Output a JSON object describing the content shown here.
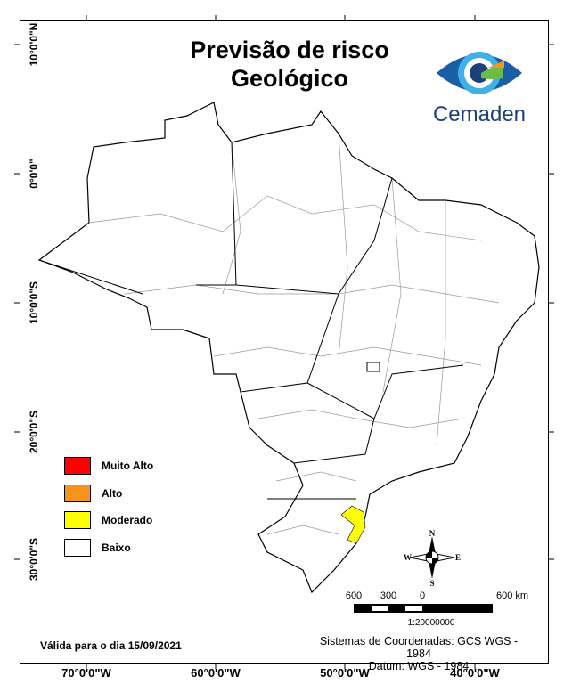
{
  "title": {
    "line1": "Previsão de risco",
    "line2": "Geológico"
  },
  "logo": {
    "text": "Cemaden",
    "icon": "cemaden-eye-logo"
  },
  "latitude_labels": [
    "10°0'0\"N",
    "0°0'0\"",
    "10°0'0\"S",
    "20°0'0\"S",
    "30°0'0\"S"
  ],
  "longitude_labels": [
    "70°0'0\"W",
    "60°0'0\"W",
    "50°0'0\"W",
    "40°0'0\"W"
  ],
  "legend": [
    {
      "label": "Muito Alto",
      "color": "#ff0000"
    },
    {
      "label": "Alto",
      "color": "#f7941d"
    },
    {
      "label": "Moderado",
      "color": "#ffff00"
    },
    {
      "label": "Baixo",
      "color": "#ffffff"
    }
  ],
  "compass": {
    "n": "N",
    "s": "S",
    "e": "E",
    "w": "W"
  },
  "scale_bar": {
    "labels": [
      "600",
      "300",
      "0",
      "600 km"
    ],
    "ratio": "1:20000000"
  },
  "valid_date": "Válida para o dia 15/09/2021",
  "coordinate_system": {
    "line1": "Sistemas de Coordenadas: GCS WGS - 1984",
    "line2": "Datum: WGS - 1984"
  }
}
